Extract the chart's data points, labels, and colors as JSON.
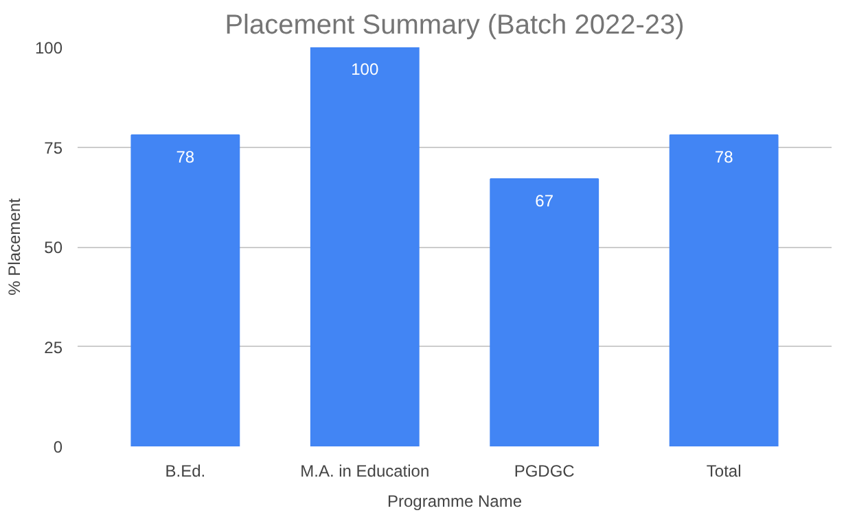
{
  "chart_data": {
    "type": "bar",
    "title": "Placement Summary (Batch 2022-23)",
    "xlabel": "Programme Name",
    "ylabel": "% Placement",
    "categories": [
      "B.Ed.",
      "M.A. in Education",
      "PGDGC",
      "Total"
    ],
    "values": [
      78,
      100,
      67,
      78
    ],
    "color": "#4285f4",
    "data_labels": true,
    "ylim": [
      0,
      100
    ],
    "yticks": [
      0,
      25,
      50,
      75,
      100
    ],
    "grid": "y"
  }
}
